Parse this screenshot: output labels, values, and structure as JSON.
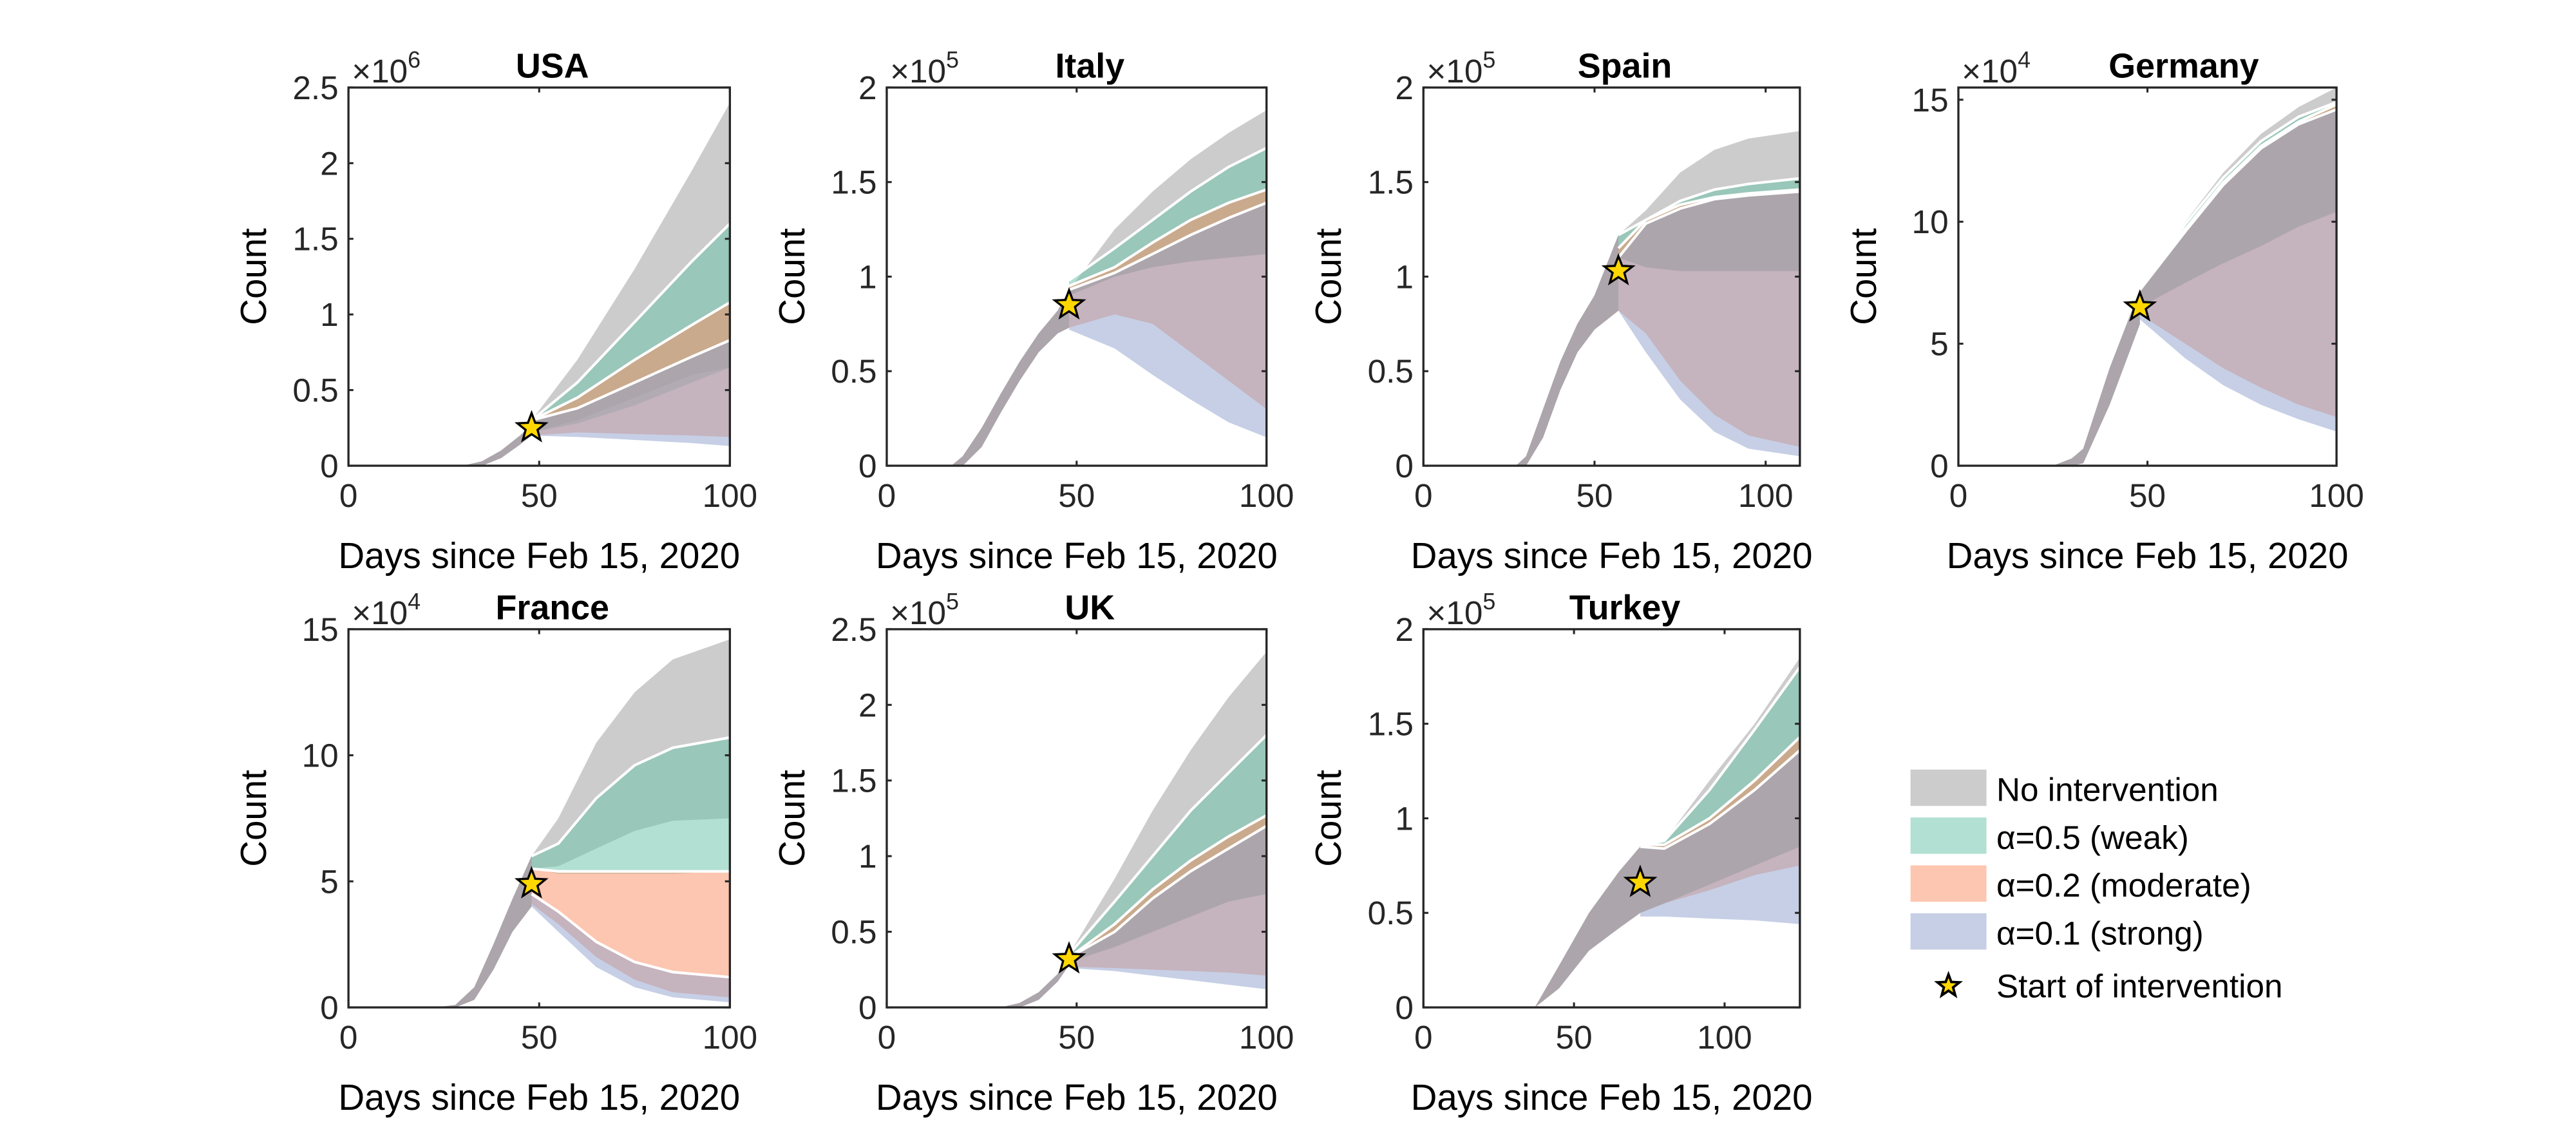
{
  "chart_data": [
    {
      "type": "area",
      "title": "USA",
      "xlabel": "Days since Feb 15, 2020",
      "ylabel": "Count",
      "y_exponent": "6",
      "xlim": [
        0,
        100
      ],
      "ylim": [
        0,
        2.5
      ],
      "xticks": [
        0,
        50,
        100
      ],
      "yticks": [
        "0",
        "0.5",
        "1",
        "1.5",
        "2",
        "2.5"
      ],
      "intervention": {
        "x": 48,
        "y": 0.25
      },
      "pre": {
        "x": [
          30,
          35,
          40,
          45,
          48
        ],
        "lo": [
          0,
          0,
          0.05,
          0.14,
          0.2
        ],
        "hi": [
          0,
          0.03,
          0.1,
          0.2,
          0.27
        ]
      },
      "post": {
        "x": [
          48,
          60,
          75,
          90,
          100
        ],
        "none": {
          "lo": [
            0.22,
            0.3,
            0.45,
            0.6,
            0.65
          ],
          "hi": [
            0.3,
            0.7,
            1.3,
            1.95,
            2.4
          ]
        },
        "weak": {
          "lo": [
            0.22,
            0.28,
            0.4,
            0.55,
            0.65
          ],
          "hi": [
            0.3,
            0.55,
            0.95,
            1.35,
            1.6
          ]
        },
        "moderate": {
          "lo": [
            0.2,
            0.22,
            0.21,
            0.2,
            0.19
          ],
          "hi": [
            0.3,
            0.45,
            0.7,
            0.93,
            1.08
          ]
        },
        "strong": {
          "lo": [
            0.2,
            0.19,
            0.17,
            0.15,
            0.13
          ],
          "hi": [
            0.3,
            0.38,
            0.55,
            0.72,
            0.83
          ]
        }
      }
    },
    {
      "type": "area",
      "title": "Italy",
      "xlabel": "Days since Feb 15, 2020",
      "ylabel": "Count",
      "y_exponent": "5",
      "xlim": [
        0,
        100
      ],
      "ylim": [
        0,
        2
      ],
      "xticks": [
        0,
        50,
        100
      ],
      "yticks": [
        "0",
        "0.5",
        "1",
        "1.5",
        "2"
      ],
      "intervention": {
        "x": 48,
        "y": 0.85
      },
      "pre": {
        "x": [
          17,
          20,
          25,
          30,
          35,
          40,
          45,
          48
        ],
        "lo": [
          0,
          0,
          0.1,
          0.28,
          0.45,
          0.6,
          0.7,
          0.73
        ],
        "hi": [
          0,
          0.05,
          0.2,
          0.38,
          0.55,
          0.7,
          0.82,
          0.93
        ]
      },
      "post": {
        "x": [
          48,
          60,
          70,
          80,
          90,
          100
        ],
        "none": {
          "lo": [
            0.9,
            1.0,
            1.05,
            1.08,
            1.1,
            1.12
          ],
          "hi": [
            0.93,
            1.25,
            1.45,
            1.62,
            1.76,
            1.88
          ]
        },
        "weak": {
          "lo": [
            0.9,
            1.0,
            1.05,
            1.08,
            1.1,
            1.12
          ],
          "hi": [
            0.98,
            1.15,
            1.3,
            1.45,
            1.58,
            1.68
          ]
        },
        "moderate": {
          "lo": [
            0.73,
            0.8,
            0.75,
            0.6,
            0.45,
            0.3
          ],
          "hi": [
            0.95,
            1.05,
            1.18,
            1.3,
            1.39,
            1.46
          ]
        },
        "strong": {
          "lo": [
            0.72,
            0.62,
            0.48,
            0.35,
            0.23,
            0.15
          ],
          "hi": [
            0.93,
            1.02,
            1.12,
            1.22,
            1.31,
            1.39
          ]
        }
      }
    },
    {
      "type": "area",
      "title": "Spain",
      "xlabel": "Days since Feb 15, 2020",
      "ylabel": "Count",
      "y_exponent": "5",
      "xlim": [
        0,
        110
      ],
      "ylim": [
        0,
        2
      ],
      "xticks": [
        0,
        50,
        100
      ],
      "yticks": [
        "0",
        "0.5",
        "1",
        "1.5",
        "2"
      ],
      "intervention": {
        "x": 57,
        "y": 1.03
      },
      "pre": {
        "x": [
          27,
          30,
          35,
          40,
          45,
          50,
          57
        ],
        "lo": [
          0,
          0,
          0.15,
          0.4,
          0.6,
          0.72,
          0.82
        ],
        "hi": [
          0,
          0.05,
          0.3,
          0.55,
          0.75,
          0.9,
          1.22
        ]
      },
      "post": {
        "x": [
          57,
          65,
          75,
          85,
          95,
          110
        ],
        "none": {
          "lo": [
            1.1,
            1.05,
            1.03,
            1.03,
            1.03,
            1.03
          ],
          "hi": [
            1.22,
            1.35,
            1.55,
            1.67,
            1.73,
            1.77
          ]
        },
        "weak": {
          "lo": [
            1.1,
            1.05,
            1.03,
            1.03,
            1.03,
            1.03
          ],
          "hi": [
            1.22,
            1.3,
            1.4,
            1.46,
            1.49,
            1.52
          ]
        },
        "moderate": {
          "lo": [
            0.82,
            0.7,
            0.45,
            0.27,
            0.16,
            0.1
          ],
          "hi": [
            1.15,
            1.3,
            1.38,
            1.42,
            1.44,
            1.46
          ]
        },
        "strong": {
          "lo": [
            0.82,
            0.6,
            0.35,
            0.18,
            0.09,
            0.05
          ],
          "hi": [
            1.1,
            1.28,
            1.36,
            1.41,
            1.43,
            1.45
          ]
        }
      }
    },
    {
      "type": "area",
      "title": "Germany",
      "xlabel": "Days since Feb 15, 2020",
      "ylabel": "Count",
      "y_exponent": "4",
      "xlim": [
        0,
        100
      ],
      "ylim": [
        0,
        15.5
      ],
      "xticks": [
        0,
        50,
        100
      ],
      "yticks": [
        "0",
        "5",
        "10",
        "15"
      ],
      "intervention": {
        "x": 48,
        "y": 6.5
      },
      "pre": {
        "x": [
          25,
          30,
          33,
          40,
          48
        ],
        "lo": [
          0,
          0,
          0.1,
          2.5,
          5.8
        ],
        "hi": [
          0,
          0.3,
          0.7,
          4,
          7.2
        ]
      },
      "post": {
        "x": [
          48,
          60,
          70,
          80,
          90,
          100
        ],
        "none": {
          "lo": [
            6.5,
            7.5,
            8.3,
            9.0,
            9.8,
            10.4
          ],
          "hi": [
            7.2,
            10,
            12,
            13.6,
            14.7,
            15.5
          ]
        },
        "weak": {
          "lo": [
            6.5,
            7.5,
            8.3,
            9.0,
            9.8,
            10.4
          ],
          "hi": [
            7.2,
            9.9,
            11.8,
            13.3,
            14.3,
            14.9
          ]
        },
        "moderate": {
          "lo": [
            6.2,
            5,
            4,
            3.2,
            2.5,
            2.0
          ],
          "hi": [
            7.2,
            9.7,
            11.6,
            13.1,
            14.1,
            14.8
          ]
        },
        "strong": {
          "lo": [
            6.0,
            4.4,
            3.3,
            2.5,
            1.9,
            1.4
          ],
          "hi": [
            7.2,
            9.6,
            11.5,
            13,
            14,
            14.6
          ]
        }
      }
    },
    {
      "type": "area",
      "title": "France",
      "xlabel": "Days since Feb 15, 2020",
      "ylabel": "Count",
      "y_exponent": "4",
      "xlim": [
        0,
        100
      ],
      "ylim": [
        0,
        15
      ],
      "xticks": [
        0,
        50,
        100
      ],
      "yticks": [
        "0",
        "5",
        "10",
        "15"
      ],
      "intervention": {
        "x": 48,
        "y": 4.9
      },
      "pre": {
        "x": [
          23,
          28,
          33,
          38,
          43,
          48
        ],
        "lo": [
          0,
          0,
          0.3,
          1.5,
          3.0,
          4.0
        ],
        "hi": [
          0,
          0.1,
          0.8,
          2.5,
          4.3,
          6.0
        ]
      },
      "post": {
        "x": [
          48,
          55,
          65,
          75,
          85,
          100
        ],
        "none": {
          "lo": [
            5.5,
            5.6,
            6.3,
            7.0,
            7.4,
            7.5
          ],
          "hi": [
            6,
            7.5,
            10.5,
            12.5,
            13.8,
            14.6
          ]
        },
        "weak": {
          "lo": [
            5.5,
            5.3,
            5.3,
            5.3,
            5.3,
            5.4
          ],
          "hi": [
            6,
            6.5,
            8.3,
            9.6,
            10.3,
            10.7
          ]
        },
        "moderate": {
          "lo": [
            4.1,
            3.3,
            2.0,
            1.1,
            0.6,
            0.4
          ],
          "hi": [
            5.5,
            5.4,
            5.4,
            5.4,
            5.4,
            5.4
          ]
        },
        "strong": {
          "lo": [
            4,
            3.0,
            1.6,
            0.8,
            0.4,
            0.2
          ],
          "hi": [
            4.5,
            3.8,
            2.6,
            1.8,
            1.4,
            1.2
          ]
        }
      }
    },
    {
      "type": "area",
      "title": "UK",
      "xlabel": "Days since Feb 15, 2020",
      "ylabel": "Count",
      "y_exponent": "5",
      "xlim": [
        0,
        100
      ],
      "ylim": [
        0,
        2.5
      ],
      "xticks": [
        0,
        50,
        100
      ],
      "yticks": [
        "0",
        "0.5",
        "1",
        "1.5",
        "2",
        "2.5"
      ],
      "intervention": {
        "x": 48,
        "y": 0.32
      },
      "pre": {
        "x": [
          30,
          35,
          40,
          45,
          48
        ],
        "lo": [
          0,
          0,
          0.05,
          0.17,
          0.28
        ],
        "hi": [
          0,
          0.03,
          0.1,
          0.22,
          0.35
        ]
      },
      "post": {
        "x": [
          48,
          60,
          70,
          80,
          90,
          100
        ],
        "none": {
          "lo": [
            0.3,
            0.4,
            0.5,
            0.6,
            0.7,
            0.75
          ],
          "hi": [
            0.35,
            0.85,
            1.3,
            1.7,
            2.05,
            2.35
          ]
        },
        "weak": {
          "lo": [
            0.3,
            0.4,
            0.5,
            0.6,
            0.7,
            0.75
          ],
          "hi": [
            0.35,
            0.7,
            1.0,
            1.3,
            1.55,
            1.8
          ]
        },
        "moderate": {
          "lo": [
            0.27,
            0.26,
            0.25,
            0.24,
            0.23,
            0.21
          ],
          "hi": [
            0.33,
            0.55,
            0.78,
            0.97,
            1.13,
            1.27
          ]
        },
        "strong": {
          "lo": [
            0.26,
            0.24,
            0.21,
            0.18,
            0.15,
            0.12
          ],
          "hi": [
            0.33,
            0.5,
            0.72,
            0.9,
            1.05,
            1.2
          ]
        }
      }
    },
    {
      "type": "area",
      "title": "Turkey",
      "xlabel": "Days since Feb 15, 2020",
      "ylabel": "Count",
      "y_exponent": "5",
      "xlim": [
        0,
        125
      ],
      "ylim": [
        0,
        2
      ],
      "xticks": [
        0,
        50,
        100
      ],
      "yticks": [
        "0",
        "0.5",
        "1",
        "1.5",
        "2"
      ],
      "intervention": {
        "x": 72,
        "y": 0.66
      },
      "pre": {
        "x": [
          37,
          45,
          55,
          65,
          72
        ],
        "lo": [
          0,
          0.1,
          0.3,
          0.42,
          0.5
        ],
        "hi": [
          0,
          0.22,
          0.5,
          0.72,
          0.85
        ]
      },
      "post": {
        "x": [
          72,
          80,
          95,
          110,
          125
        ],
        "none": {
          "lo": [
            0.5,
            0.55,
            0.65,
            0.75,
            0.85
          ],
          "hi": [
            0.86,
            0.88,
            1.2,
            1.5,
            1.85
          ]
        },
        "weak": {
          "lo": [
            0.5,
            0.55,
            0.65,
            0.75,
            0.85
          ],
          "hi": [
            0.86,
            0.88,
            1.15,
            1.47,
            1.8
          ]
        },
        "moderate": {
          "lo": [
            0.5,
            0.55,
            0.62,
            0.7,
            0.75
          ],
          "hi": [
            0.86,
            0.86,
            1.0,
            1.2,
            1.43
          ]
        },
        "strong": {
          "lo": [
            0.48,
            0.48,
            0.47,
            0.46,
            0.44
          ],
          "hi": [
            0.85,
            0.84,
            0.97,
            1.15,
            1.36
          ]
        }
      }
    }
  ],
  "legend": {
    "position": "bottom-right",
    "items": [
      {
        "key": "none",
        "label": "No intervention",
        "color": "#999999"
      },
      {
        "key": "weak",
        "label": "α=0.5 (weak)",
        "color": "#66c2a5"
      },
      {
        "key": "moderate",
        "label": "α=0.2 (moderate)",
        "color": "#fc8d62"
      },
      {
        "key": "strong",
        "label": "α=0.1 (strong)",
        "color": "#8da0cb"
      }
    ],
    "marker_label": "Start of intervention",
    "marker_color": "#ffd700"
  }
}
